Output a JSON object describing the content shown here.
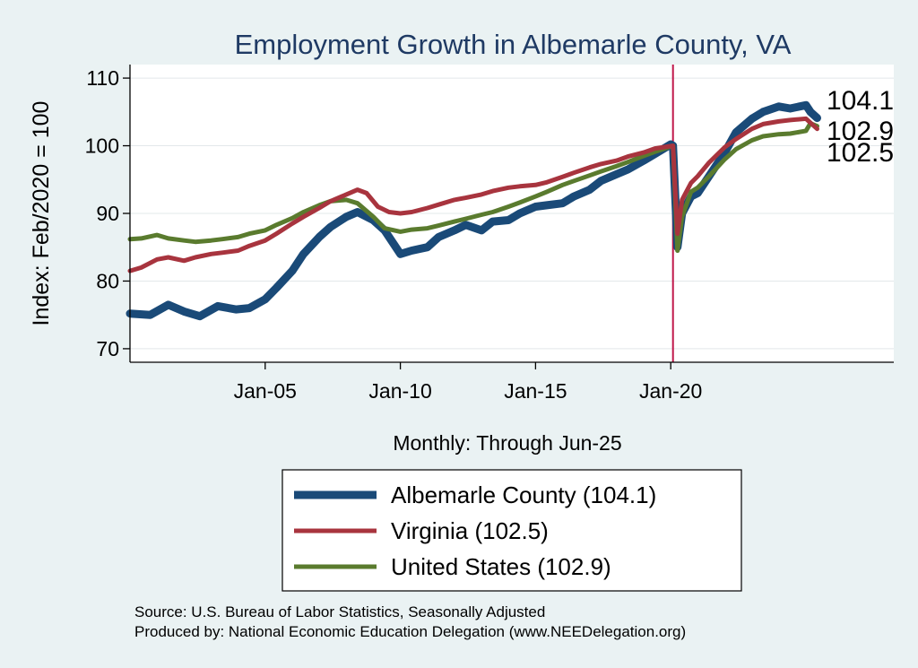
{
  "chart_data": {
    "type": "line",
    "title": "Employment Growth in Albemarle  County, VA",
    "ylabel": "Index: Feb/2020 = 100",
    "xlabel": "Monthly: Through Jun-25",
    "ylim": [
      68,
      112
    ],
    "yticks": [
      70,
      80,
      90,
      100,
      110
    ],
    "xlim": [
      "2000-01",
      "2028-04"
    ],
    "xticks": [
      {
        "date": "2005-01",
        "label": "Jan-05"
      },
      {
        "date": "2010-01",
        "label": "Jan-10"
      },
      {
        "date": "2015-01",
        "label": "Jan-15"
      },
      {
        "date": "2020-01",
        "label": "Jan-20"
      }
    ],
    "reference_line": {
      "date": "2020-02",
      "color": "#c0174a"
    },
    "grid": "horizontal",
    "legend_position": "bottom",
    "end_labels": [
      "104.1",
      "102.9",
      "102.5"
    ],
    "series": [
      {
        "name": "Albemarle  County (104.1)",
        "color": "#1a4a78",
        "width": 9,
        "points": [
          [
            "2000-01",
            75.2
          ],
          [
            "2000-10",
            75.0
          ],
          [
            "2001-06",
            76.5
          ],
          [
            "2002-01",
            75.5
          ],
          [
            "2002-08",
            74.8
          ],
          [
            "2003-04",
            76.3
          ],
          [
            "2003-12",
            75.8
          ],
          [
            "2004-06",
            76.0
          ],
          [
            "2005-01",
            77.3
          ],
          [
            "2005-06",
            79.0
          ],
          [
            "2006-01",
            81.5
          ],
          [
            "2006-06",
            84.0
          ],
          [
            "2007-01",
            86.5
          ],
          [
            "2007-06",
            88.0
          ],
          [
            "2008-01",
            89.5
          ],
          [
            "2008-06",
            90.2
          ],
          [
            "2009-01",
            89.0
          ],
          [
            "2009-06",
            87.5
          ],
          [
            "2009-10",
            85.5
          ],
          [
            "2010-01",
            84.0
          ],
          [
            "2010-06",
            84.5
          ],
          [
            "2011-01",
            85.0
          ],
          [
            "2011-06",
            86.5
          ],
          [
            "2012-01",
            87.5
          ],
          [
            "2012-06",
            88.3
          ],
          [
            "2013-01",
            87.5
          ],
          [
            "2013-06",
            88.8
          ],
          [
            "2014-01",
            89.0
          ],
          [
            "2014-06",
            90.0
          ],
          [
            "2015-01",
            91.0
          ],
          [
            "2015-06",
            91.2
          ],
          [
            "2016-01",
            91.5
          ],
          [
            "2016-06",
            92.5
          ],
          [
            "2017-01",
            93.5
          ],
          [
            "2017-06",
            94.8
          ],
          [
            "2018-01",
            95.8
          ],
          [
            "2018-06",
            96.5
          ],
          [
            "2019-01",
            97.8
          ],
          [
            "2019-06",
            98.8
          ],
          [
            "2020-01",
            100.2
          ],
          [
            "2020-02",
            100.0
          ],
          [
            "2020-04",
            85.0
          ],
          [
            "2020-06",
            90.0
          ],
          [
            "2020-10",
            92.5
          ],
          [
            "2021-01",
            93.0
          ],
          [
            "2021-06",
            95.5
          ],
          [
            "2022-01",
            99.0
          ],
          [
            "2022-06",
            102.0
          ],
          [
            "2023-01",
            104.0
          ],
          [
            "2023-06",
            105.0
          ],
          [
            "2024-01",
            105.8
          ],
          [
            "2024-06",
            105.5
          ],
          [
            "2025-01",
            106.0
          ],
          [
            "2025-03",
            105.0
          ],
          [
            "2025-06",
            104.1
          ]
        ]
      },
      {
        "name": "Virginia (102.5)",
        "color": "#a8343e",
        "width": 5,
        "points": [
          [
            "2000-01",
            81.5
          ],
          [
            "2000-06",
            82.0
          ],
          [
            "2001-01",
            83.2
          ],
          [
            "2001-06",
            83.5
          ],
          [
            "2002-01",
            83.0
          ],
          [
            "2002-06",
            83.5
          ],
          [
            "2003-01",
            84.0
          ],
          [
            "2003-06",
            84.2
          ],
          [
            "2004-01",
            84.5
          ],
          [
            "2004-06",
            85.2
          ],
          [
            "2005-01",
            86.0
          ],
          [
            "2005-06",
            87.0
          ],
          [
            "2006-01",
            88.5
          ],
          [
            "2006-06",
            89.5
          ],
          [
            "2007-01",
            90.8
          ],
          [
            "2007-06",
            91.8
          ],
          [
            "2008-01",
            92.8
          ],
          [
            "2008-06",
            93.5
          ],
          [
            "2008-10",
            93.0
          ],
          [
            "2009-03",
            91.0
          ],
          [
            "2009-08",
            90.2
          ],
          [
            "2010-01",
            90.0
          ],
          [
            "2010-06",
            90.2
          ],
          [
            "2011-01",
            90.8
          ],
          [
            "2011-06",
            91.3
          ],
          [
            "2012-01",
            92.0
          ],
          [
            "2012-06",
            92.3
          ],
          [
            "2013-01",
            92.8
          ],
          [
            "2013-06",
            93.3
          ],
          [
            "2014-01",
            93.8
          ],
          [
            "2014-06",
            94.0
          ],
          [
            "2015-01",
            94.2
          ],
          [
            "2015-06",
            94.6
          ],
          [
            "2016-01",
            95.4
          ],
          [
            "2016-06",
            96.0
          ],
          [
            "2017-01",
            96.8
          ],
          [
            "2017-06",
            97.3
          ],
          [
            "2018-01",
            97.8
          ],
          [
            "2018-06",
            98.4
          ],
          [
            "2019-01",
            99.0
          ],
          [
            "2019-06",
            99.6
          ],
          [
            "2020-02",
            100.0
          ],
          [
            "2020-04",
            87.0
          ],
          [
            "2020-06",
            92.0
          ],
          [
            "2020-10",
            94.5
          ],
          [
            "2021-01",
            95.5
          ],
          [
            "2021-06",
            97.5
          ],
          [
            "2022-01",
            99.8
          ],
          [
            "2022-06",
            101.0
          ],
          [
            "2023-01",
            102.5
          ],
          [
            "2023-06",
            103.2
          ],
          [
            "2024-01",
            103.6
          ],
          [
            "2024-06",
            103.8
          ],
          [
            "2025-01",
            104.0
          ],
          [
            "2025-06",
            102.5
          ]
        ]
      },
      {
        "name": "United States (102.9)",
        "color": "#5a7b2e",
        "width": 5,
        "points": [
          [
            "2000-01",
            86.2
          ],
          [
            "2000-06",
            86.3
          ],
          [
            "2001-01",
            86.8
          ],
          [
            "2001-06",
            86.3
          ],
          [
            "2002-01",
            86.0
          ],
          [
            "2002-06",
            85.8
          ],
          [
            "2003-01",
            86.0
          ],
          [
            "2003-06",
            86.2
          ],
          [
            "2004-01",
            86.5
          ],
          [
            "2004-06",
            87.0
          ],
          [
            "2005-01",
            87.5
          ],
          [
            "2005-06",
            88.3
          ],
          [
            "2006-01",
            89.3
          ],
          [
            "2006-06",
            90.2
          ],
          [
            "2007-01",
            91.2
          ],
          [
            "2007-06",
            91.8
          ],
          [
            "2008-01",
            92.0
          ],
          [
            "2008-06",
            91.5
          ],
          [
            "2009-01",
            89.5
          ],
          [
            "2009-06",
            87.8
          ],
          [
            "2010-01",
            87.3
          ],
          [
            "2010-06",
            87.6
          ],
          [
            "2011-01",
            87.8
          ],
          [
            "2011-06",
            88.2
          ],
          [
            "2012-01",
            88.8
          ],
          [
            "2012-06",
            89.2
          ],
          [
            "2013-01",
            89.8
          ],
          [
            "2013-06",
            90.2
          ],
          [
            "2014-01",
            91.0
          ],
          [
            "2014-06",
            91.6
          ],
          [
            "2015-01",
            92.5
          ],
          [
            "2015-06",
            93.2
          ],
          [
            "2016-01",
            94.2
          ],
          [
            "2016-06",
            94.8
          ],
          [
            "2017-01",
            95.6
          ],
          [
            "2017-06",
            96.2
          ],
          [
            "2018-01",
            97.0
          ],
          [
            "2018-06",
            97.6
          ],
          [
            "2019-01",
            98.5
          ],
          [
            "2019-06",
            99.1
          ],
          [
            "2020-02",
            100.0
          ],
          [
            "2020-04",
            84.5
          ],
          [
            "2020-06",
            89.5
          ],
          [
            "2020-10",
            93.2
          ],
          [
            "2021-01",
            93.8
          ],
          [
            "2021-06",
            95.5
          ],
          [
            "2022-01",
            98.0
          ],
          [
            "2022-06",
            99.5
          ],
          [
            "2023-01",
            100.8
          ],
          [
            "2023-06",
            101.4
          ],
          [
            "2024-01",
            101.7
          ],
          [
            "2024-06",
            101.8
          ],
          [
            "2025-01",
            102.2
          ],
          [
            "2025-03",
            103.3
          ],
          [
            "2025-06",
            102.9
          ]
        ]
      }
    ]
  },
  "source": "Source: U.S. Bureau of Labor Statistics, Seasonally Adjusted",
  "produced_by": "Produced by: National Economic Education Delegation (www.NEEDelegation.org)"
}
